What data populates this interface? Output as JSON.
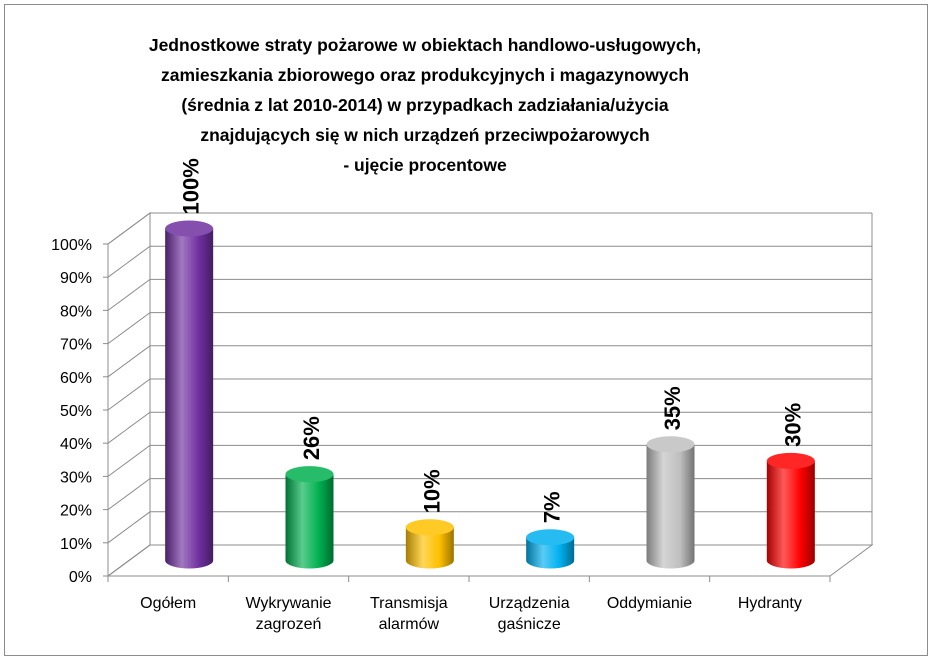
{
  "chart_data": {
    "type": "bar",
    "style": "3d-cylinder",
    "title_lines": [
      "Jednostkowe straty pożarowe w  obiektach handlowo-usługowych,",
      "zamieszkania zbiorowego oraz produkcyjnych i magazynowych",
      "(średnia z lat 2010-2014) w przypadkach zadziałania/użycia",
      "znajdujących się w nich urządzeń przeciwpożarowych",
      "- ujęcie procentowe"
    ],
    "categories": [
      [
        "Ogółem"
      ],
      [
        "Wykrywanie",
        "zagrozeń"
      ],
      [
        "Transmisja",
        "alarmów"
      ],
      [
        "Urządzenia",
        "gaśnicze"
      ],
      [
        "Oddymianie"
      ],
      [
        "Hydranty"
      ]
    ],
    "values": [
      100,
      26,
      10,
      7,
      35,
      30
    ],
    "data_labels": [
      "100%",
      "26%",
      "10%",
      "7%",
      "35%",
      "30%"
    ],
    "bar_colors": [
      "#7030a0",
      "#00b050",
      "#ffc000",
      "#00b0f0",
      "#bfbfbf",
      "#ff0000"
    ],
    "y_ticks": [
      "0%",
      "10%",
      "20%",
      "30%",
      "40%",
      "50%",
      "60%",
      "70%",
      "80%",
      "90%",
      "100%"
    ],
    "ylim": [
      0,
      100
    ],
    "grid": true,
    "legend": "none"
  }
}
